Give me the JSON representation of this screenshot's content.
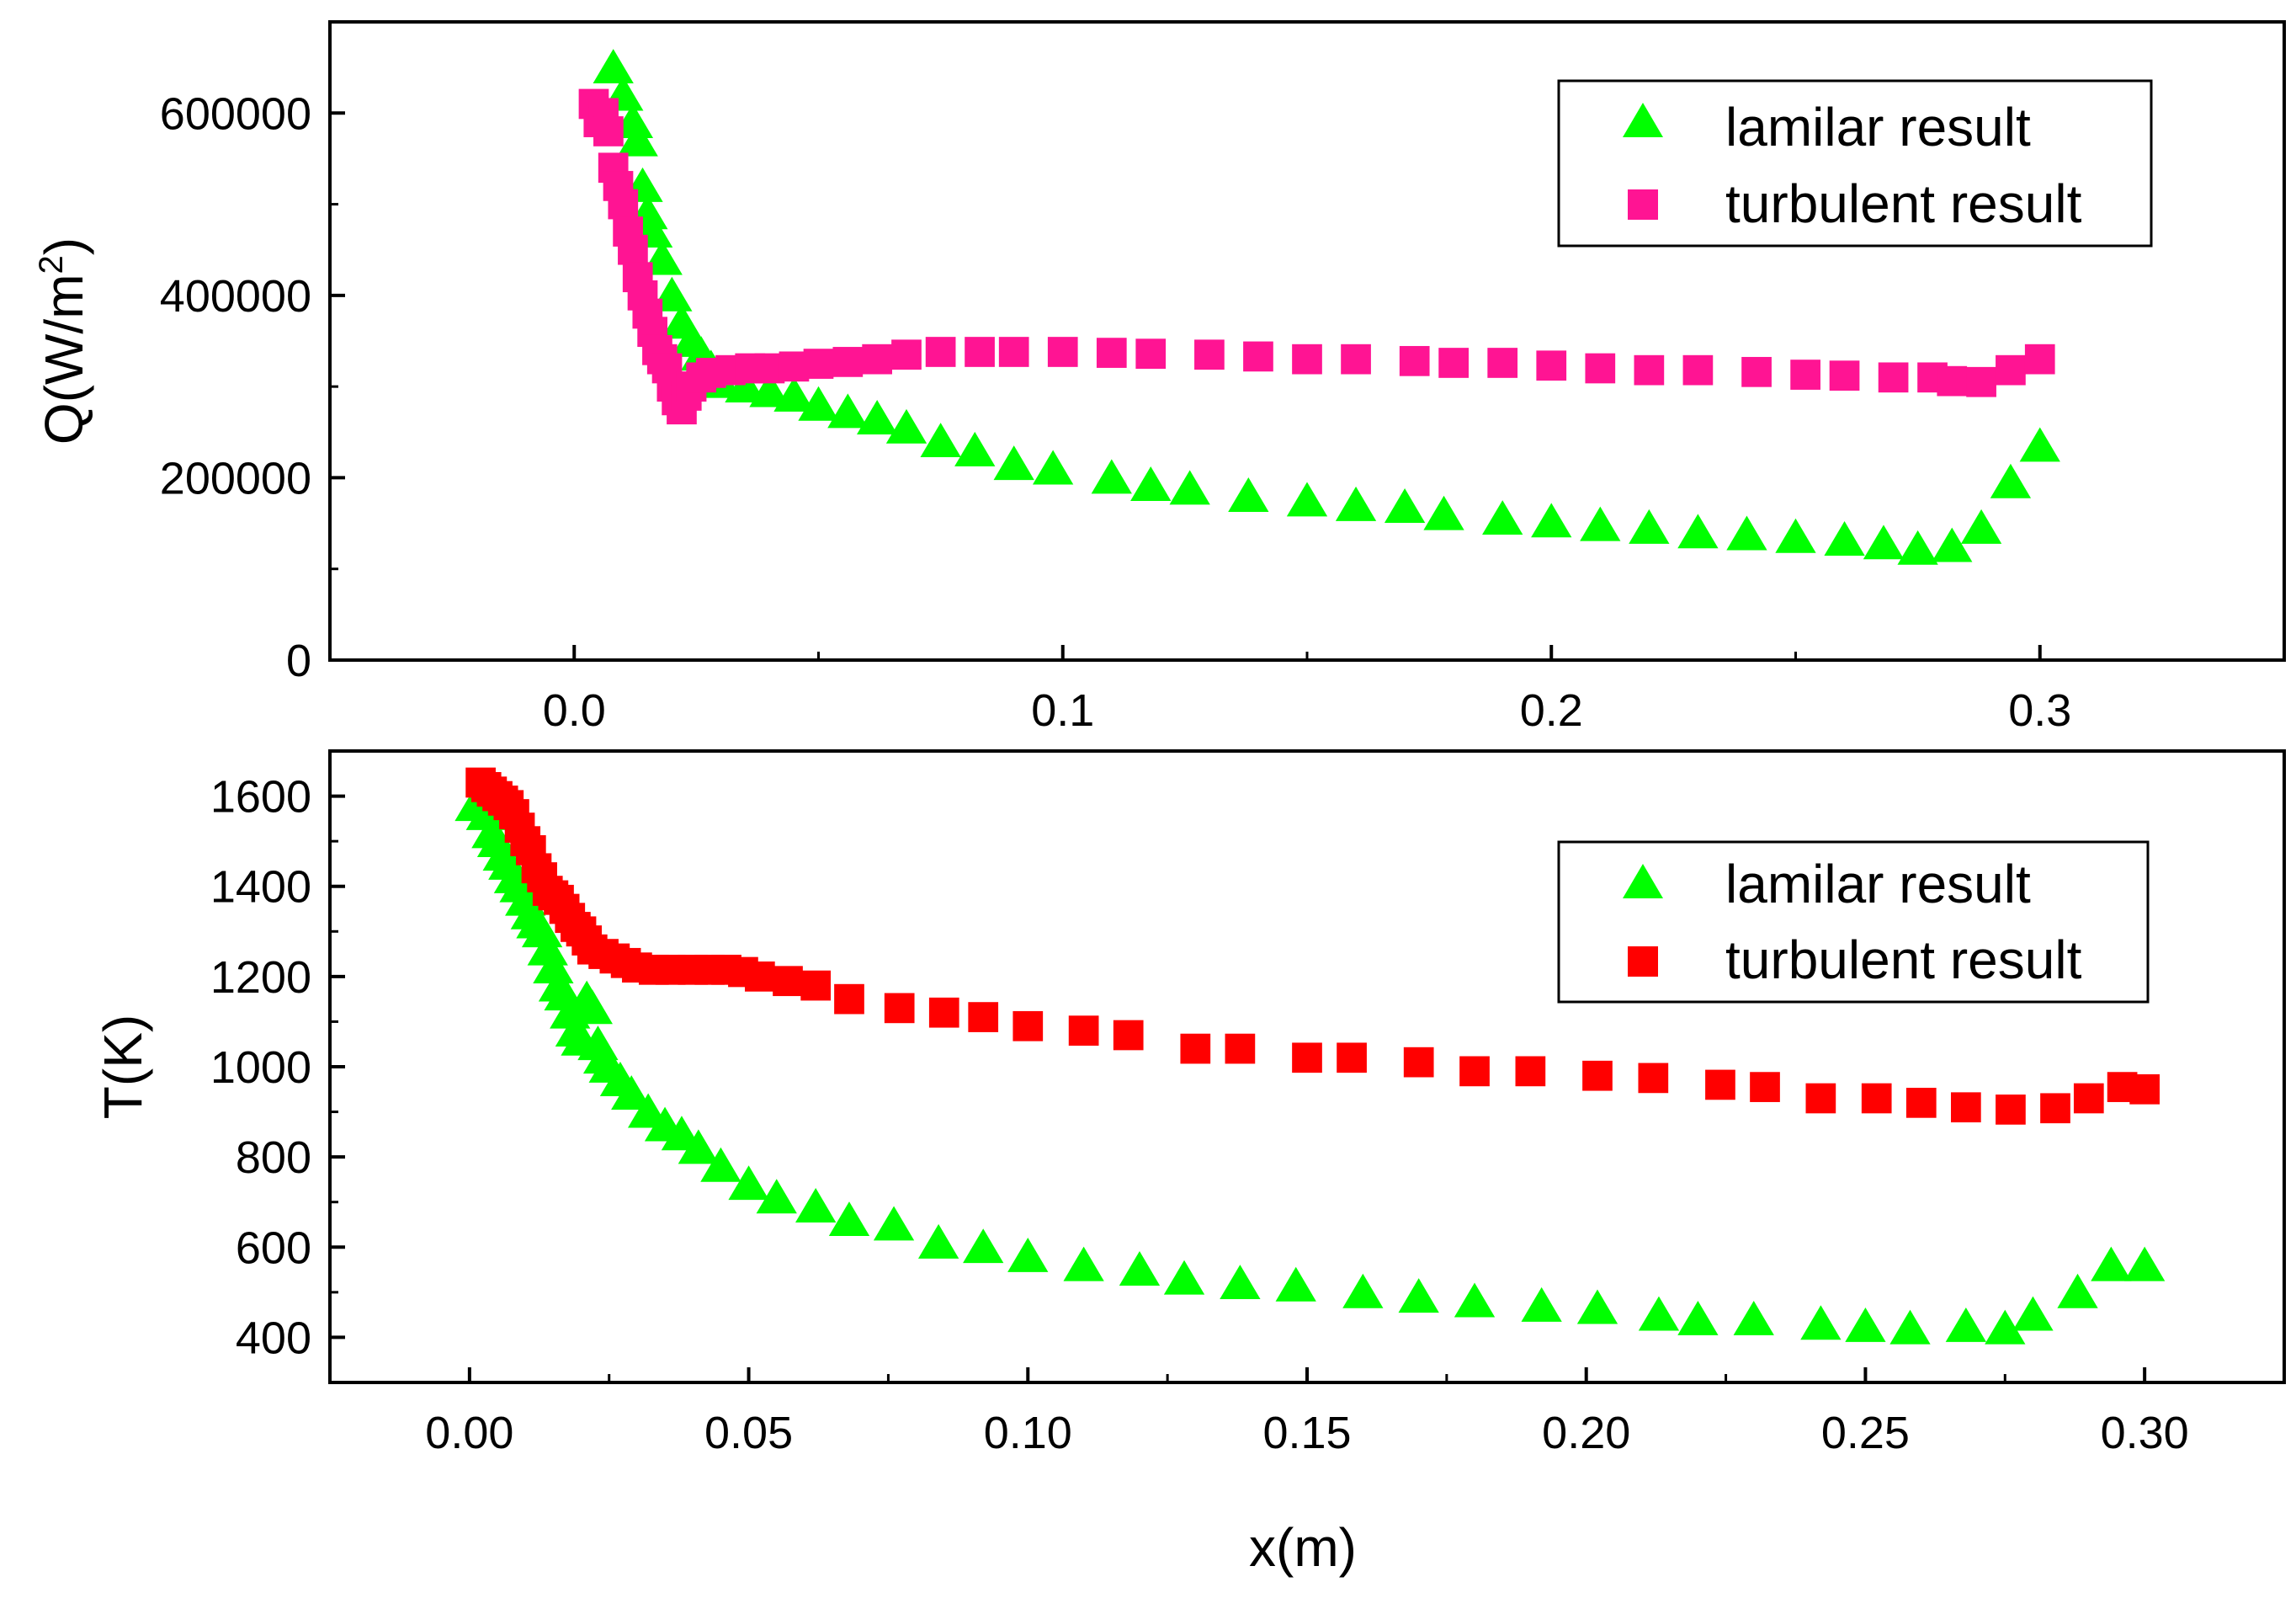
{
  "colors": {
    "laminar": "#00ff00",
    "turbulent_top": "#ff1493",
    "turbulent_bottom": "#ff0000",
    "axis": "#000000"
  },
  "chart_data": [
    {
      "type": "scatter",
      "id": "top",
      "title": "",
      "xlabel": "",
      "ylabel": "Q(W/m²)",
      "ylabel_base": "Q(W/m",
      "ylabel_sup": "2",
      "ylabel_tail": ")",
      "xlim": [
        -0.05,
        0.35
      ],
      "ylim": [
        0,
        700000
      ],
      "xticks": [
        0.0,
        0.1,
        0.2,
        0.3
      ],
      "xtick_labels": [
        "0.0",
        "0.1",
        "0.2",
        "0.3"
      ],
      "yticks": [
        0,
        200000,
        400000,
        600000
      ],
      "ytick_labels": [
        "0",
        "200000",
        "400000",
        "600000"
      ],
      "grid": false,
      "legend_position": "top-right",
      "series": [
        {
          "name": "lamilar result",
          "marker": "triangle",
          "color": "#00ff00",
          "x": [
            0.008,
            0.01,
            0.012,
            0.013,
            0.014,
            0.015,
            0.016,
            0.018,
            0.02,
            0.022,
            0.024,
            0.026,
            0.028,
            0.03,
            0.035,
            0.04,
            0.045,
            0.05,
            0.056,
            0.062,
            0.068,
            0.075,
            0.082,
            0.09,
            0.098,
            0.11,
            0.118,
            0.126,
            0.138,
            0.15,
            0.16,
            0.17,
            0.178,
            0.19,
            0.2,
            0.21,
            0.22,
            0.23,
            0.24,
            0.25,
            0.26,
            0.268,
            0.275,
            0.282,
            0.288,
            0.294,
            0.3
          ],
          "y": [
            650000,
            620000,
            590000,
            570000,
            520000,
            490000,
            470000,
            440000,
            400000,
            370000,
            350000,
            335000,
            320000,
            305000,
            300000,
            295000,
            290000,
            280000,
            272000,
            265000,
            255000,
            240000,
            230000,
            215000,
            210000,
            200000,
            192000,
            188000,
            180000,
            175000,
            170000,
            168000,
            160000,
            155000,
            152000,
            148000,
            145000,
            140000,
            138000,
            135000,
            132000,
            128000,
            122000,
            125000,
            145000,
            195000,
            235000
          ]
        },
        {
          "name": "turbulent result",
          "marker": "square",
          "color": "#ff1493",
          "x": [
            0.004,
            0.005,
            0.006,
            0.007,
            0.008,
            0.009,
            0.01,
            0.011,
            0.012,
            0.013,
            0.014,
            0.015,
            0.016,
            0.017,
            0.018,
            0.019,
            0.02,
            0.021,
            0.022,
            0.023,
            0.024,
            0.026,
            0.028,
            0.032,
            0.036,
            0.04,
            0.045,
            0.05,
            0.056,
            0.062,
            0.068,
            0.075,
            0.083,
            0.09,
            0.1,
            0.11,
            0.118,
            0.13,
            0.14,
            0.15,
            0.16,
            0.172,
            0.18,
            0.19,
            0.2,
            0.21,
            0.22,
            0.23,
            0.242,
            0.252,
            0.26,
            0.27,
            0.278,
            0.282,
            0.288,
            0.294,
            0.3
          ],
          "y": [
            610000,
            590000,
            600000,
            580000,
            540000,
            520000,
            500000,
            470000,
            450000,
            420000,
            400000,
            380000,
            360000,
            340000,
            330000,
            320000,
            300000,
            285000,
            275000,
            290000,
            300000,
            310000,
            315000,
            318000,
            320000,
            320000,
            322000,
            325000,
            327000,
            330000,
            335000,
            338000,
            338000,
            338000,
            338000,
            337000,
            336000,
            335000,
            333000,
            330000,
            330000,
            328000,
            326000,
            326000,
            323000,
            320000,
            318000,
            318000,
            316000,
            313000,
            312000,
            310000,
            310000,
            306000,
            305000,
            318000,
            330000
          ]
        }
      ]
    },
    {
      "type": "scatter",
      "id": "bottom",
      "title": "",
      "xlabel": "x(m)",
      "ylabel": "T(K)",
      "xlim": [
        -0.025,
        0.325
      ],
      "ylim": [
        300,
        1700
      ],
      "xticks": [
        0.0,
        0.05,
        0.1,
        0.15,
        0.2,
        0.25,
        0.3
      ],
      "xtick_labels": [
        "0.00",
        "0.05",
        "0.10",
        "0.15",
        "0.20",
        "0.25",
        "0.30"
      ],
      "yticks": [
        400,
        600,
        800,
        1000,
        1200,
        1400,
        1600
      ],
      "ytick_labels": [
        "400",
        "600",
        "800",
        "1000",
        "1200",
        "1400",
        "1600"
      ],
      "grid": false,
      "legend_position": "top-right",
      "series": [
        {
          "name": "lamilar result",
          "marker": "triangle",
          "color": "#00ff00",
          "x": [
            0.001,
            0.003,
            0.004,
            0.005,
            0.006,
            0.007,
            0.008,
            0.009,
            0.01,
            0.011,
            0.012,
            0.013,
            0.014,
            0.015,
            0.016,
            0.017,
            0.018,
            0.019,
            0.02,
            0.021,
            0.022,
            0.023,
            0.024,
            0.025,
            0.027,
            0.029,
            0.032,
            0.035,
            0.038,
            0.041,
            0.045,
            0.05,
            0.055,
            0.062,
            0.068,
            0.076,
            0.084,
            0.092,
            0.1,
            0.11,
            0.12,
            0.128,
            0.138,
            0.148,
            0.16,
            0.17,
            0.18,
            0.192,
            0.202,
            0.213,
            0.22,
            0.23,
            0.242,
            0.25,
            0.258,
            0.268,
            0.275,
            0.28,
            0.288,
            0.294,
            0.3
          ],
          "y": [
            1580,
            1560,
            1520,
            1500,
            1470,
            1450,
            1420,
            1400,
            1370,
            1340,
            1320,
            1300,
            1260,
            1220,
            1180,
            1160,
            1120,
            1080,
            1060,
            1150,
            1130,
            1050,
            1020,
            1000,
            970,
            940,
            900,
            870,
            850,
            820,
            780,
            740,
            710,
            690,
            660,
            650,
            610,
            600,
            580,
            560,
            550,
            530,
            520,
            515,
            500,
            490,
            480,
            470,
            465,
            450,
            440,
            440,
            430,
            425,
            420,
            425,
            420,
            450,
            500,
            560,
            560
          ]
        },
        {
          "name": "turbulent result",
          "marker": "square",
          "color": "#ff0000",
          "x": [
            0.002,
            0.003,
            0.004,
            0.005,
            0.006,
            0.007,
            0.008,
            0.009,
            0.01,
            0.011,
            0.012,
            0.013,
            0.014,
            0.015,
            0.016,
            0.017,
            0.018,
            0.019,
            0.02,
            0.021,
            0.022,
            0.024,
            0.026,
            0.028,
            0.03,
            0.033,
            0.036,
            0.04,
            0.043,
            0.046,
            0.049,
            0.052,
            0.057,
            0.062,
            0.068,
            0.077,
            0.085,
            0.092,
            0.1,
            0.11,
            0.118,
            0.13,
            0.138,
            0.15,
            0.158,
            0.17,
            0.18,
            0.19,
            0.202,
            0.212,
            0.224,
            0.232,
            0.242,
            0.252,
            0.26,
            0.268,
            0.276,
            0.284,
            0.29,
            0.296,
            0.3
          ],
          "y": [
            1630,
            1620,
            1610,
            1600,
            1590,
            1580,
            1560,
            1530,
            1500,
            1480,
            1440,
            1420,
            1390,
            1380,
            1370,
            1350,
            1330,
            1310,
            1300,
            1280,
            1260,
            1250,
            1240,
            1230,
            1220,
            1215,
            1215,
            1215,
            1215,
            1215,
            1210,
            1200,
            1190,
            1180,
            1150,
            1130,
            1120,
            1110,
            1090,
            1080,
            1070,
            1040,
            1040,
            1020,
            1020,
            1010,
            990,
            990,
            980,
            975,
            960,
            955,
            930,
            930,
            920,
            910,
            905,
            908,
            930,
            955,
            950
          ]
        }
      ]
    }
  ]
}
